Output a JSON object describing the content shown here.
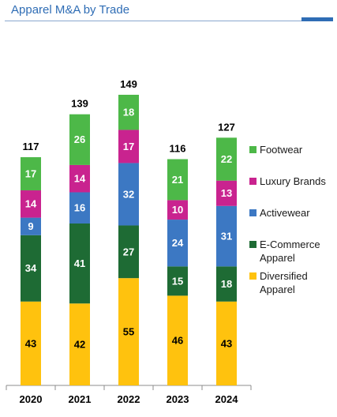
{
  "header": {
    "title": "Apparel M&A by Trade"
  },
  "chart_data": {
    "type": "bar",
    "stacked": true,
    "categories": [
      "2020",
      "2021",
      "2022",
      "2023",
      "2024"
    ],
    "totals": [
      117,
      139,
      149,
      116,
      127
    ],
    "series": [
      {
        "name": "Diversified Apparel",
        "color": "#ffc20e",
        "label_color": "#000000",
        "values": [
          43,
          42,
          55,
          46,
          43
        ]
      },
      {
        "name": "E-Commerce Apparel",
        "color": "#1e6b34",
        "label_color": "#ffffff",
        "values": [
          34,
          41,
          27,
          15,
          18
        ]
      },
      {
        "name": "Activewear",
        "color": "#3c78c3",
        "label_color": "#ffffff",
        "values": [
          9,
          16,
          32,
          24,
          31
        ]
      },
      {
        "name": "Luxury Brands",
        "color": "#c9238f",
        "label_color": "#ffffff",
        "values": [
          14,
          14,
          17,
          10,
          13
        ]
      },
      {
        "name": "Footwear",
        "color": "#4db848",
        "label_color": "#ffffff",
        "values": [
          17,
          26,
          18,
          21,
          22
        ]
      }
    ],
    "legend": [
      "Footwear",
      "Luxury Brands",
      "Activewear",
      "E-Commerce Apparel",
      "Diversified Apparel"
    ],
    "legend_position": "right",
    "ylim": [
      0,
      149
    ],
    "grid": false
  }
}
